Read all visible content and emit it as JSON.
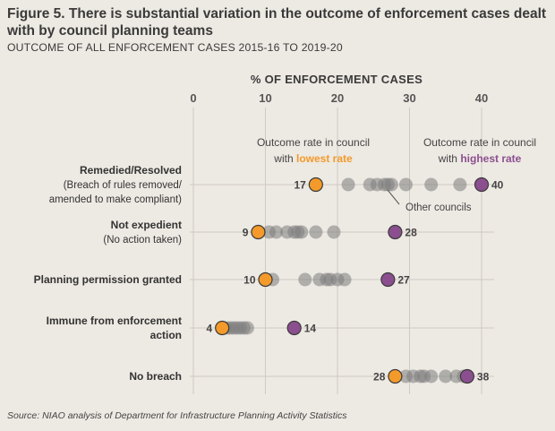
{
  "header": {
    "title": "Figure 5.  There is substantial variation in the outcome of enforcement cases dealt with by council planning teams",
    "subtitle": "OUTCOME OF ALL ENFORCEMENT CASES 2015-16 TO 2019-20"
  },
  "source": "Source: NIAO analysis of Department for Infrastructure Planning Activity Statistics",
  "colors": {
    "background": "#ede9e3",
    "lowest": "#f39a2a",
    "highest": "#8b4f8f",
    "other": "#7d7d7d",
    "grid": "#cfcac3"
  },
  "legend": {
    "lowest_line1": "Outcome rate in council",
    "lowest_line2_prefix": "with ",
    "lowest_line2_emph": "lowest rate",
    "highest_line1": "Outcome rate in council",
    "highest_line2_prefix": "with ",
    "highest_line2_emph": "highest rate",
    "others": "Other councils"
  },
  "chart_data": {
    "type": "scatter",
    "title": "OUTCOME OF ALL ENFORCEMENT CASES 2015-16 TO 2019-20",
    "xlabel": "% OF ENFORCEMENT CASES",
    "xlim": [
      0,
      42
    ],
    "xticks": [
      0,
      10,
      20,
      30,
      40
    ],
    "categories": [
      {
        "label": "Remedied/Resolved",
        "sublabel_lines": [
          "(Breach of rules removed/",
          "amended to make compliant)"
        ],
        "lowest": 17,
        "highest": 40,
        "others": [
          21.5,
          24.5,
          25.5,
          26.5,
          27,
          27.5,
          29.5,
          33,
          37
        ]
      },
      {
        "label": "Not expedient",
        "sublabel_lines": [
          "(No action taken)"
        ],
        "lowest": 9,
        "highest": 28,
        "others": [
          10.5,
          11.5,
          13,
          14,
          14.5,
          15,
          17,
          19.5
        ]
      },
      {
        "label": "Planning permission granted",
        "sublabel_lines": [],
        "lowest": 10,
        "highest": 27,
        "others": [
          11,
          15.5,
          17.5,
          18.5,
          19,
          20,
          21
        ]
      },
      {
        "label": "Immune from enforcement",
        "sublabel_lines": [
          "action"
        ],
        "sublabel_bold": true,
        "lowest": 4,
        "highest": 14,
        "others": [
          4.5,
          5,
          5.5,
          6,
          6.5,
          7,
          7.5
        ]
      },
      {
        "label": "No breach",
        "sublabel_lines": [],
        "lowest": 28,
        "highest": 38,
        "others": [
          29.5,
          30.5,
          31.5,
          32,
          33,
          35,
          36.5,
          37.5
        ]
      }
    ]
  }
}
